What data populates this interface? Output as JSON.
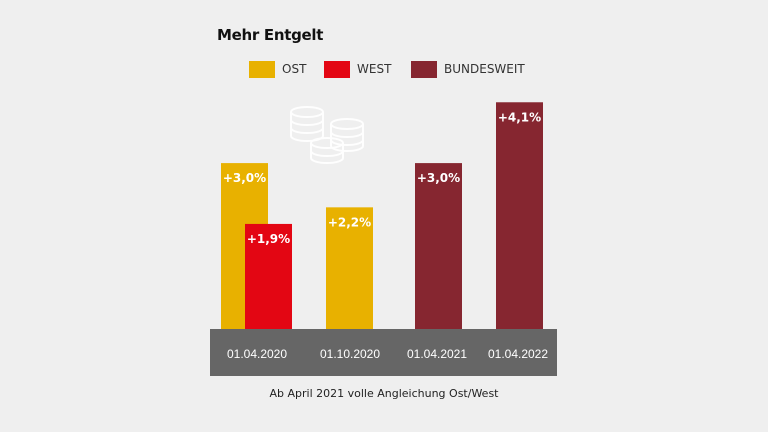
{
  "title": "Mehr Entgelt",
  "footnote": "Ab April 2021 volle Angleichung Ost/West",
  "colors": {
    "ost": "#e8b100",
    "west": "#e30613",
    "bundesweit": "#862630",
    "axis_band": "#666666",
    "coins": "#ffffff"
  },
  "icons": [
    "coins-icon"
  ],
  "chart_data": {
    "type": "bar",
    "title": "Mehr Entgelt",
    "xlabel": "",
    "ylabel": "",
    "ylim": [
      0,
      4.3
    ],
    "grid": false,
    "legend_position": "top",
    "categories": [
      "01.04.2020",
      "01.10.2020",
      "01.04.2021",
      "01.04.2022"
    ],
    "series": [
      {
        "name": "OST",
        "color": "#e8b100",
        "values": [
          3.0,
          2.2,
          null,
          null
        ],
        "labels": [
          "+3,0%",
          "+2,2%",
          "",
          ""
        ]
      },
      {
        "name": "WEST",
        "color": "#e30613",
        "values": [
          1.9,
          null,
          null,
          null
        ],
        "labels": [
          "+1,9%",
          "",
          "",
          ""
        ]
      },
      {
        "name": "BUNDESWEIT",
        "color": "#862630",
        "values": [
          null,
          null,
          3.0,
          4.1
        ],
        "labels": [
          "",
          "",
          "+3,0%",
          "+4,1%"
        ]
      }
    ]
  }
}
